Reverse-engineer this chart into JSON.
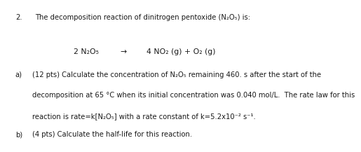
{
  "title_num": "2.",
  "title_text": "The decomposition reaction of dinitrogen pentoxide (N₂O₅) is:",
  "reaction_left": "2 N₂O₅",
  "reaction_arrow": "→",
  "reaction_right": "4 NO₂ (g) + O₂ (g)",
  "part_a_label": "a)",
  "part_a_text1": "(12 pts) Calculate the concentration of N₂O₅ remaining 460. s after the start of the",
  "part_a_text2": "decomposition at 65 °C when its initial concentration was 0.040 mol/L.  The rate law for this",
  "part_a_text3": "reaction is rate=k[N₂O₅] with a rate constant of k=5.2x10⁻² s⁻¹.",
  "part_b_label": "b)",
  "part_b_text": "(4 pts) Calculate the half-life for this reaction.",
  "bg_color": "#ffffff",
  "text_color": "#1a1a1a",
  "font_size": 7.2,
  "font_size_reaction": 7.8
}
